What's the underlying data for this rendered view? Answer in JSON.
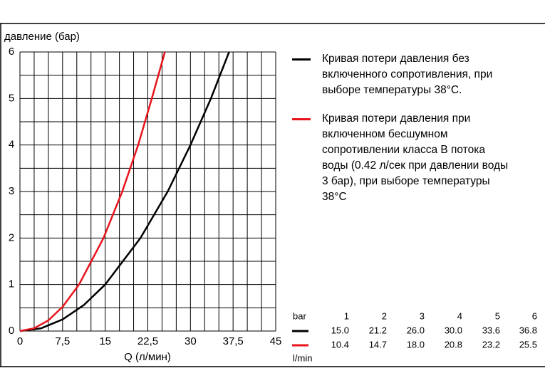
{
  "chart_data": {
    "type": "line",
    "ylabel": "давление (бар)",
    "xlabel": "Q (л/мин)",
    "xlim": [
      0,
      45
    ],
    "ylim": [
      0,
      6
    ],
    "xticks": [
      0,
      {
        "value": 7.5,
        "label": "7,5"
      },
      15,
      {
        "value": 22.5,
        "label": "22,5"
      },
      30,
      {
        "value": 37.5,
        "label": "37,5"
      },
      45
    ],
    "yticks": [
      0,
      1,
      2,
      3,
      4,
      5,
      6
    ],
    "grid": true,
    "series": [
      {
        "name": "Кривая потери давления без включенного сопротивления, при выборе температуры 38°C.",
        "color": "#000000",
        "x": [
          0,
          3.75,
          7.5,
          11.25,
          15,
          21.2,
          26,
          30,
          33.6,
          36.8
        ],
        "values": [
          0,
          0.06,
          0.25,
          0.56,
          1,
          2,
          3,
          4,
          5,
          6
        ]
      },
      {
        "name": "Кривая потери давления при включенном бесшумном сопротивлении класса B потока воды (0.42 л/сек при давлении воды 3 бар), при выборе температуры 38°C",
        "color": "#e8141c",
        "x": [
          0,
          2.5,
          5,
          7.5,
          10.4,
          14.7,
          18,
          20.8,
          23.2,
          25.5
        ],
        "values": [
          0,
          0.06,
          0.23,
          0.52,
          1,
          2,
          3,
          4,
          5,
          6
        ]
      }
    ]
  },
  "table": {
    "header": "bar",
    "columns": [
      "1",
      "2",
      "3",
      "4",
      "5",
      "6"
    ],
    "rows": [
      [
        "15.0",
        "21.2",
        "26.0",
        "30.0",
        "33.6",
        "36.8"
      ],
      [
        "10.4",
        "14.7",
        "18.0",
        "20.8",
        "23.2",
        "25.5"
      ]
    ],
    "footer": "l/min"
  }
}
